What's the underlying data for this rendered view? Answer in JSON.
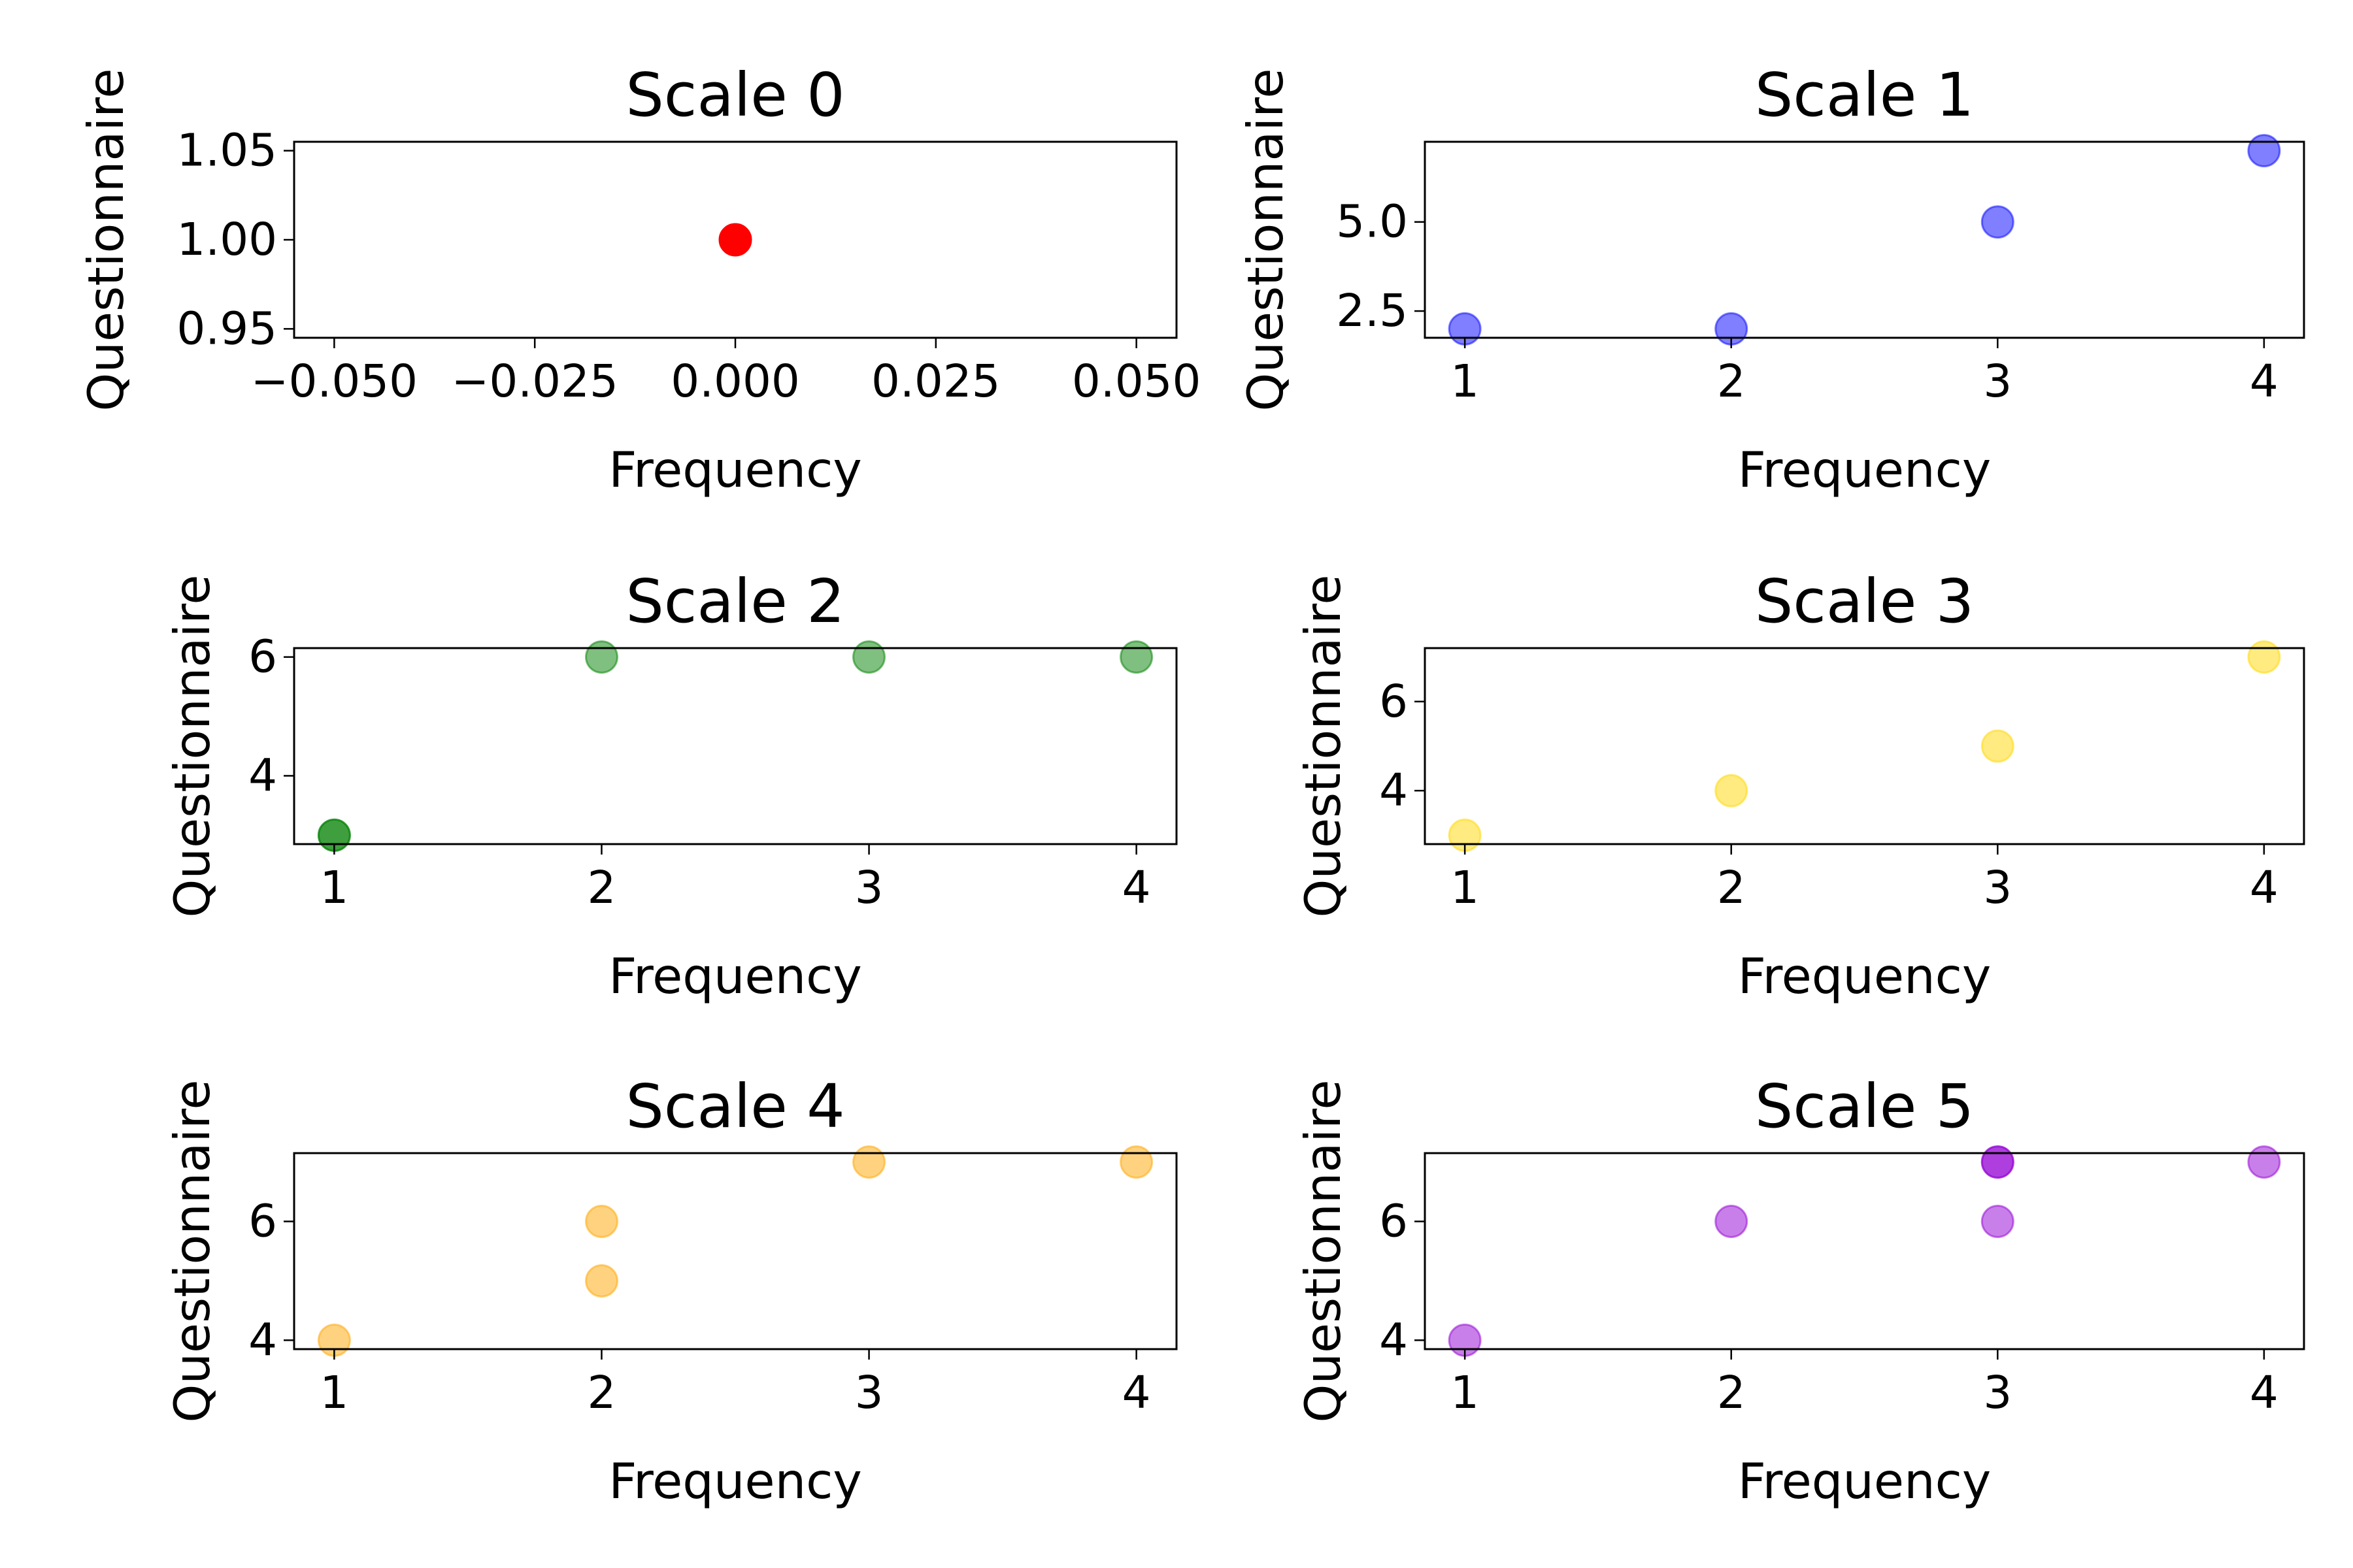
{
  "chart_data": [
    {
      "type": "scatter",
      "title": "Scale 0",
      "xlabel": "Frequency",
      "ylabel": "Questionnaire",
      "xlim": [
        -0.055,
        0.055
      ],
      "ylim": [
        0.945,
        1.055
      ],
      "xticks": [
        -0.05,
        -0.025,
        0.0,
        0.025,
        0.05
      ],
      "xtick_labels": [
        "−0.050",
        "−0.025",
        "0.000",
        "0.025",
        "0.050"
      ],
      "yticks": [
        0.95,
        1.0,
        1.05
      ],
      "ytick_labels": [
        "0.95",
        "1.00",
        "1.05"
      ],
      "color": "#ff0000",
      "alpha": 1.0,
      "grid": false,
      "points": [
        {
          "x": 0.0,
          "y": 1.0
        }
      ]
    },
    {
      "type": "scatter",
      "title": "Scale 1",
      "xlabel": "Frequency",
      "ylabel": "Questionnaire",
      "xlim": [
        0.85,
        4.15
      ],
      "ylim": [
        1.75,
        7.25
      ],
      "xticks": [
        1,
        2,
        3,
        4
      ],
      "xtick_labels": [
        "1",
        "2",
        "3",
        "4"
      ],
      "yticks": [
        2.5,
        5.0
      ],
      "ytick_labels": [
        "2.5",
        "5.0"
      ],
      "color": "#0000ff",
      "alpha": 0.5,
      "grid": false,
      "points": [
        {
          "x": 1,
          "y": 2
        },
        {
          "x": 2,
          "y": 2
        },
        {
          "x": 3,
          "y": 5
        },
        {
          "x": 4,
          "y": 7
        }
      ]
    },
    {
      "type": "scatter",
      "title": "Scale 2",
      "xlabel": "Frequency",
      "ylabel": "Questionnaire",
      "xlim": [
        0.85,
        4.15
      ],
      "ylim": [
        2.85,
        6.15
      ],
      "xticks": [
        1,
        2,
        3,
        4
      ],
      "xtick_labels": [
        "1",
        "2",
        "3",
        "4"
      ],
      "yticks": [
        4,
        6
      ],
      "ytick_labels": [
        "4",
        "6"
      ],
      "color": "#008000",
      "alpha": 0.5,
      "grid": false,
      "points": [
        {
          "x": 1,
          "y": 3
        },
        {
          "x": 1,
          "y": 3
        },
        {
          "x": 2,
          "y": 6
        },
        {
          "x": 3,
          "y": 6
        },
        {
          "x": 4,
          "y": 6
        }
      ]
    },
    {
      "type": "scatter",
      "title": "Scale 3",
      "xlabel": "Frequency",
      "ylabel": "Questionnaire",
      "xlim": [
        0.85,
        4.15
      ],
      "ylim": [
        2.8,
        7.2
      ],
      "xticks": [
        1,
        2,
        3,
        4
      ],
      "xtick_labels": [
        "1",
        "2",
        "3",
        "4"
      ],
      "yticks": [
        4,
        6
      ],
      "ytick_labels": [
        "4",
        "6"
      ],
      "color": "#ffd700",
      "alpha": 0.5,
      "grid": false,
      "points": [
        {
          "x": 1,
          "y": 3
        },
        {
          "x": 2,
          "y": 4
        },
        {
          "x": 3,
          "y": 5
        },
        {
          "x": 4,
          "y": 7
        }
      ]
    },
    {
      "type": "scatter",
      "title": "Scale 4",
      "xlabel": "Frequency",
      "ylabel": "Questionnaire",
      "xlim": [
        0.85,
        4.15
      ],
      "ylim": [
        3.85,
        7.15
      ],
      "xticks": [
        1,
        2,
        3,
        4
      ],
      "xtick_labels": [
        "1",
        "2",
        "3",
        "4"
      ],
      "yticks": [
        4,
        6
      ],
      "ytick_labels": [
        "4",
        "6"
      ],
      "color": "#ffa500",
      "alpha": 0.5,
      "grid": false,
      "points": [
        {
          "x": 1,
          "y": 4
        },
        {
          "x": 2,
          "y": 6
        },
        {
          "x": 2,
          "y": 5
        },
        {
          "x": 3,
          "y": 7
        },
        {
          "x": 4,
          "y": 7
        }
      ]
    },
    {
      "type": "scatter",
      "title": "Scale 5",
      "xlabel": "Frequency",
      "ylabel": "Questionnaire",
      "xlim": [
        0.85,
        4.15
      ],
      "ylim": [
        3.85,
        7.15
      ],
      "xticks": [
        1,
        2,
        3,
        4
      ],
      "xtick_labels": [
        "1",
        "2",
        "3",
        "4"
      ],
      "yticks": [
        4,
        6
      ],
      "ytick_labels": [
        "4",
        "6"
      ],
      "color": "#9400d3",
      "alpha": 0.5,
      "grid": false,
      "points": [
        {
          "x": 1,
          "y": 4
        },
        {
          "x": 2,
          "y": 6
        },
        {
          "x": 3,
          "y": 7
        },
        {
          "x": 3,
          "y": 7
        },
        {
          "x": 3,
          "y": 6
        },
        {
          "x": 4,
          "y": 7
        }
      ]
    }
  ]
}
